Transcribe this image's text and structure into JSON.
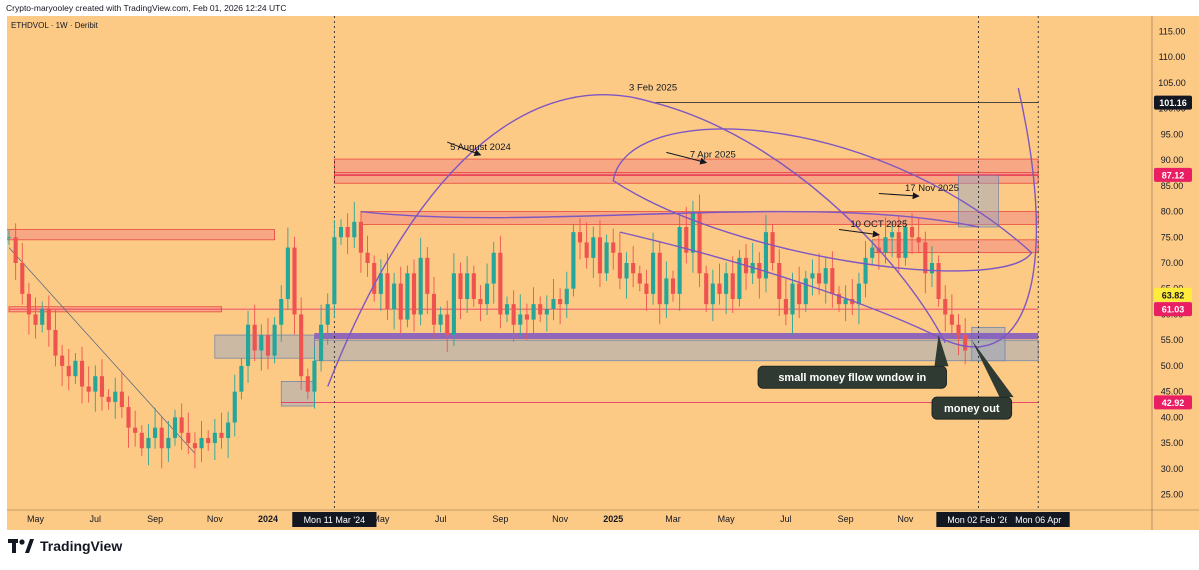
{
  "credit": "Crypto-maryooley created with TradingView.com, Feb 01, 2026 12:24 UTC",
  "footer": {
    "brand": "TradingView",
    "logo_icon": "tradingview-logo-icon"
  },
  "colors": {
    "background": "#FDCA86",
    "bull": "#26A69A",
    "bear": "#EF5350",
    "zone_red": "#F28B82",
    "zone_blue": "#8FA3C8",
    "purple": "#7E57C2",
    "label_dark": "#131722"
  },
  "chart_data": {
    "type": "candlestick",
    "symbol": "ETHDVOL · 1W · Deribit",
    "ylim": [
      22,
      118
    ],
    "y_ticks": [
      "25.00",
      "30.00",
      "35.00",
      "40.00",
      "45.00",
      "50.00",
      "55.00",
      "60.00",
      "65.00",
      "70.00",
      "75.00",
      "80.00",
      "85.00",
      "90.00",
      "95.00",
      "100.00",
      "105.00",
      "110.00",
      "115.00"
    ],
    "x_ticks": [
      {
        "label": "May",
        "week": 4
      },
      {
        "label": "Jul",
        "week": 13
      },
      {
        "label": "Sep",
        "week": 22
      },
      {
        "label": "Nov",
        "week": 31
      },
      {
        "label": "2024",
        "week": 39
      },
      {
        "label": "May",
        "week": 56
      },
      {
        "label": "Jul",
        "week": 65
      },
      {
        "label": "Sep",
        "week": 74
      },
      {
        "label": "Nov",
        "week": 83
      },
      {
        "label": "2025",
        "week": 91
      },
      {
        "label": "Mar",
        "week": 100
      },
      {
        "label": "May",
        "week": 108
      },
      {
        "label": "Jul",
        "week": 117
      },
      {
        "label": "Sep",
        "week": 126
      },
      {
        "label": "Nov",
        "week": 135
      }
    ],
    "x_markers": [
      {
        "label": "Mon 11 Mar '24",
        "week": 49
      },
      {
        "label": "Mon 02 Feb '26",
        "week": 146
      },
      {
        "label": "Mon 06 Apr",
        "week": 155
      }
    ],
    "price_labels": [
      {
        "value": 101.16,
        "text": "101.16",
        "bg": "#131722",
        "fg": "#ffffff"
      },
      {
        "value": 87.12,
        "text": "87.12",
        "bg": "#E91E63",
        "fg": "#ffffff"
      },
      {
        "value": 63.82,
        "text": "63.82",
        "bg": "#FFEB3B",
        "fg": "#131722"
      },
      {
        "value": 61.03,
        "text": "61.03",
        "bg": "#E91E63",
        "fg": "#ffffff"
      },
      {
        "value": 42.92,
        "text": "42.92",
        "bg": "#E91E63",
        "fg": "#ffffff"
      }
    ],
    "zones": [
      {
        "kind": "red",
        "w0": -1,
        "w1": 40,
        "y0": 74.5,
        "y1": 76.5
      },
      {
        "kind": "red",
        "w0": 0,
        "w1": 32,
        "y0": 60.5,
        "y1": 61.5
      },
      {
        "kind": "red",
        "w0": 49,
        "w1": 155,
        "y0": 85.5,
        "y1": 90.2
      },
      {
        "kind": "red",
        "w0": 49,
        "w1": 155,
        "y0": 87.0,
        "y1": 87.6
      },
      {
        "kind": "red",
        "w0": 53,
        "w1": 155,
        "y0": 77.5,
        "y1": 80.0
      },
      {
        "kind": "red",
        "w0": 130,
        "w1": 155,
        "y0": 72.0,
        "y1": 74.5
      },
      {
        "kind": "blue",
        "w0": 31,
        "w1": 46,
        "y0": 51.5,
        "y1": 56.0
      },
      {
        "kind": "blue",
        "w0": 46,
        "w1": 155,
        "y0": 51.0,
        "y1": 55.0
      },
      {
        "kind": "blue",
        "w0": 41,
        "w1": 46,
        "y0": 42.2,
        "y1": 47.0
      },
      {
        "kind": "blue",
        "w0": 145,
        "w1": 150,
        "y0": 51.0,
        "y1": 57.5
      },
      {
        "kind": "blue",
        "w0": 143,
        "w1": 149,
        "y0": 77.0,
        "y1": 87.1
      }
    ],
    "purple_band": {
      "w0": 46,
      "w1": 155,
      "y0": 55.2,
      "y1": 56.4
    },
    "hlines": [
      {
        "value": 101.16,
        "w0": 97,
        "w1": 155,
        "color": "#131722"
      },
      {
        "value": 87.12,
        "w0": 49,
        "w1": 155,
        "color": "#E91E63"
      },
      {
        "value": 61.03,
        "w0": 0,
        "w1": 155,
        "color": "#E91E63"
      },
      {
        "value": 42.92,
        "w0": 41,
        "w1": 155,
        "color": "#E91E63"
      }
    ],
    "annotations": [
      {
        "text": "5 August 2024",
        "week": 71,
        "value": 92.0
      },
      {
        "text": "3 Feb 2025",
        "week": 97,
        "value": 103.5
      },
      {
        "text": "7 Apr 2025",
        "week": 106,
        "value": 90.5
      },
      {
        "text": "17 Nov 2025",
        "week": 139,
        "value": 84.0
      },
      {
        "text": "10 OCT 2025",
        "week": 131,
        "value": 77.0
      }
    ],
    "arrows": [
      {
        "w0": 66,
        "v0": 93.5,
        "w1": 71,
        "v1": 91.0
      },
      {
        "w0": 99,
        "v0": 91.5,
        "w1": 105,
        "v1": 89.5
      },
      {
        "w0": 131,
        "v0": 83.5,
        "w1": 137,
        "v1": 83.0
      },
      {
        "w0": 125,
        "v0": 76.5,
        "w1": 131,
        "v1": 75.5
      }
    ],
    "callouts": [
      {
        "text": "small money fllow wndow in",
        "week": 127,
        "value": 47.8,
        "tip_week": 140,
        "tip_value": 56.0
      },
      {
        "text": "money out",
        "week": 145,
        "value": 41.8,
        "tip_week": 145,
        "tip_value": 55.0
      }
    ],
    "candles_start": [
      75,
      70,
      64,
      60,
      58,
      61,
      57,
      52,
      50,
      48,
      51,
      46,
      45,
      48,
      44,
      43,
      45,
      42,
      38,
      37,
      34,
      36,
      38,
      34,
      36,
      40,
      37,
      35,
      34,
      36,
      35,
      37,
      36,
      39,
      45,
      50,
      58,
      53,
      56,
      52,
      58,
      63,
      73,
      60,
      48,
      45,
      51,
      58,
      62,
      75,
      77,
      75,
      78,
      72,
      70,
      64,
      68,
      61,
      66,
      59,
      68,
      60,
      71,
      64,
      58,
      60,
      56,
      68,
      63,
      68,
      63,
      62,
      66,
      72,
      60,
      62,
      58,
      60,
      59,
      62,
      60,
      61,
      63,
      62,
      65,
      76,
      74,
      71,
      75,
      68,
      74,
      72,
      67,
      70,
      68,
      66,
      64,
      72,
      62,
      67,
      64,
      77,
      72,
      80,
      68,
      62,
      66,
      64,
      68,
      63,
      71,
      68,
      70,
      67,
      76,
      70,
      63,
      60,
      66,
      62,
      67,
      68,
      66,
      69,
      64,
      62,
      63,
      62,
      66,
      71,
      73,
      72,
      75,
      76,
      71,
      77,
      75,
      74,
      68,
      70,
      63,
      60,
      58,
      56,
      53
    ]
  }
}
